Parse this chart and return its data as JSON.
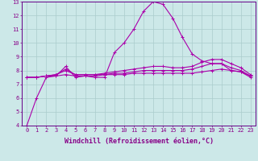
{
  "xlabel": "Windchill (Refroidissement éolien,°C)",
  "x_values": [
    0,
    1,
    2,
    3,
    4,
    5,
    6,
    7,
    8,
    9,
    10,
    11,
    12,
    13,
    14,
    15,
    16,
    17,
    18,
    19,
    20,
    21,
    22,
    23
  ],
  "series": [
    [
      4.0,
      6.0,
      7.5,
      7.6,
      8.3,
      7.5,
      7.6,
      7.5,
      7.5,
      9.3,
      10.0,
      11.0,
      12.3,
      13.0,
      12.8,
      11.8,
      10.4,
      9.2,
      8.7,
      8.5,
      8.5,
      8.0,
      7.9,
      7.5
    ],
    [
      7.5,
      7.5,
      7.6,
      7.6,
      7.7,
      7.6,
      7.6,
      7.6,
      7.7,
      7.7,
      7.7,
      7.8,
      7.8,
      7.8,
      7.8,
      7.8,
      7.8,
      7.8,
      7.9,
      8.0,
      8.1,
      8.0,
      7.9,
      7.6
    ],
    [
      7.5,
      7.5,
      7.6,
      7.7,
      8.0,
      7.7,
      7.7,
      7.7,
      7.7,
      7.8,
      7.8,
      7.9,
      8.0,
      8.0,
      8.0,
      8.0,
      8.0,
      8.1,
      8.3,
      8.5,
      8.5,
      8.2,
      8.0,
      7.6
    ],
    [
      7.5,
      7.5,
      7.6,
      7.7,
      8.1,
      7.7,
      7.7,
      7.7,
      7.8,
      7.9,
      8.0,
      8.1,
      8.2,
      8.3,
      8.3,
      8.2,
      8.2,
      8.3,
      8.6,
      8.8,
      8.8,
      8.5,
      8.2,
      7.7
    ]
  ],
  "line_color": "#aa00aa",
  "marker": "+",
  "bg_color": "#cce8e8",
  "grid_color": "#aacccc",
  "axis_color": "#660088",
  "ylim": [
    4,
    13
  ],
  "yticks": [
    4,
    5,
    6,
    7,
    8,
    9,
    10,
    11,
    12,
    13
  ],
  "xticks": [
    0,
    1,
    2,
    3,
    4,
    5,
    6,
    7,
    8,
    9,
    10,
    11,
    12,
    13,
    14,
    15,
    16,
    17,
    18,
    19,
    20,
    21,
    22,
    23
  ],
  "tick_label_fontsize": 5.0,
  "xlabel_fontsize": 6.0,
  "label_color": "#880088"
}
